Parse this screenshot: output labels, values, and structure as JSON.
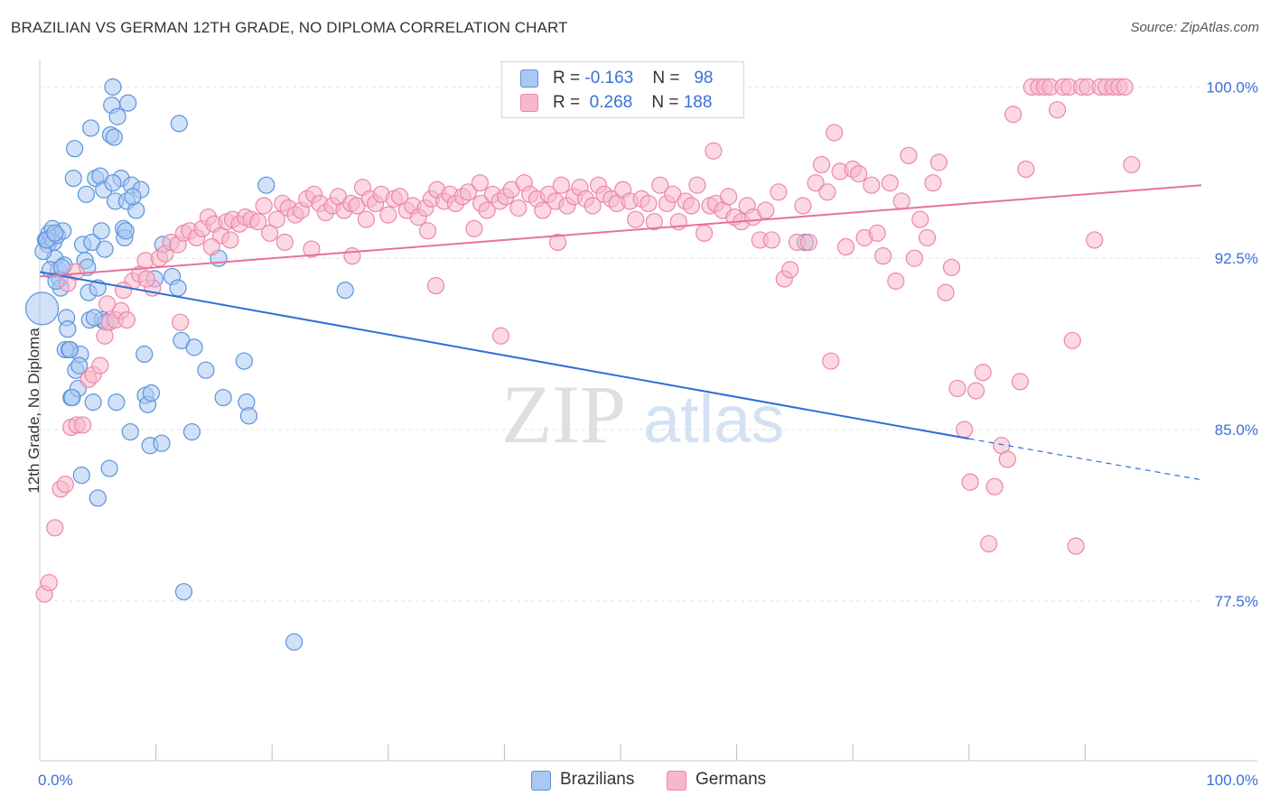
{
  "header": {
    "title": "BRAZILIAN VS GERMAN 12TH GRADE, NO DIPLOMA CORRELATION CHART",
    "source": "Source: ZipAtlas.com"
  },
  "watermark": {
    "part1": "ZIP",
    "part2": "atlas"
  },
  "colors": {
    "blue_fill": "#a9c8f2",
    "blue_stroke": "#5b93dc",
    "blue_line": "#2f6fd6",
    "pink_fill": "#f7b8cb",
    "pink_stroke": "#ec87a7",
    "pink_line": "#e8709b",
    "tick_text": "#3a6fd8",
    "grid": "#e3e3e3"
  },
  "legend_top": {
    "rows": [
      {
        "r_label": "R = ",
        "r_value": "-0.163",
        "n_label": "N = ",
        "n_value": "98"
      },
      {
        "r_label": "R = ",
        "r_value": "0.268",
        "n_label": "N = ",
        "n_value": "188"
      }
    ]
  },
  "legend_bottom": {
    "items": [
      "Brazilians",
      "Germans"
    ]
  },
  "chart_data": {
    "type": "scatter",
    "title": "BRAZILIAN VS GERMAN 12TH GRADE, NO DIPLOMA CORRELATION CHART",
    "xlabel": "",
    "ylabel": "12th Grade, No Diploma",
    "xlim": [
      0,
      100
    ],
    "ylim": [
      70.5,
      101.2
    ],
    "x_tick_labels": [
      "0.0%",
      "100.0%"
    ],
    "y_ticks": [
      77.5,
      85.0,
      92.5,
      100.0
    ],
    "y_tick_labels": [
      "77.5%",
      "85.0%",
      "92.5%",
      "100.0%"
    ],
    "grid": true,
    "legend_position": "top-center",
    "series": [
      {
        "name": "Brazilians",
        "r": -0.163,
        "n": 98,
        "trend": {
          "x0": 0,
          "y0": 91.9,
          "x1": 80,
          "y1": 84.6,
          "dashed_to_x": 100,
          "dashed_to_y": 82.8
        },
        "points": [
          [
            0.2,
            90.3,
            "L"
          ],
          [
            0.5,
            93.3
          ],
          [
            0.7,
            93.1
          ],
          [
            0.8,
            93.6
          ],
          [
            1.0,
            93.4
          ],
          [
            1.1,
            93.8
          ],
          [
            1.2,
            93.2
          ],
          [
            1.3,
            92.5
          ],
          [
            1.5,
            93.5
          ],
          [
            1.6,
            92.0
          ],
          [
            1.7,
            91.6
          ],
          [
            1.8,
            91.2
          ],
          [
            2.0,
            93.7
          ],
          [
            2.1,
            92.2
          ],
          [
            2.3,
            89.9
          ],
          [
            2.4,
            89.4
          ],
          [
            2.5,
            88.5
          ],
          [
            2.7,
            86.4
          ],
          [
            3.0,
            97.3
          ],
          [
            2.9,
            96.0
          ],
          [
            3.3,
            86.8
          ],
          [
            3.5,
            88.3
          ],
          [
            3.7,
            93.1
          ],
          [
            3.9,
            92.4
          ],
          [
            4.0,
            95.3
          ],
          [
            4.1,
            92.1
          ],
          [
            4.2,
            91.0
          ],
          [
            4.3,
            89.8
          ],
          [
            4.4,
            98.2
          ],
          [
            4.5,
            93.2
          ],
          [
            4.6,
            86.2
          ],
          [
            4.8,
            96.0
          ],
          [
            5.0,
            91.2
          ],
          [
            5.2,
            96.1
          ],
          [
            5.3,
            93.7
          ],
          [
            5.4,
            89.8
          ],
          [
            5.5,
            95.5
          ],
          [
            5.6,
            92.9
          ],
          [
            5.7,
            89.7
          ],
          [
            6.0,
            83.3
          ],
          [
            6.1,
            97.9
          ],
          [
            6.2,
            99.2
          ],
          [
            6.3,
            100.0
          ],
          [
            6.4,
            97.8
          ],
          [
            6.5,
            95.0
          ],
          [
            6.6,
            86.2
          ],
          [
            6.7,
            98.7
          ],
          [
            7.0,
            96.0
          ],
          [
            7.2,
            93.8
          ],
          [
            7.3,
            93.4
          ],
          [
            7.5,
            95.0
          ],
          [
            7.6,
            99.3
          ],
          [
            7.8,
            84.9
          ],
          [
            7.9,
            95.7
          ],
          [
            8.3,
            94.6
          ],
          [
            8.7,
            95.5
          ],
          [
            9.0,
            88.3
          ],
          [
            9.1,
            86.5
          ],
          [
            9.3,
            86.1
          ],
          [
            9.5,
            84.3
          ],
          [
            9.9,
            91.6
          ],
          [
            10.5,
            84.4
          ],
          [
            10.6,
            93.1
          ],
          [
            11.4,
            91.7
          ],
          [
            11.9,
            91.2
          ],
          [
            12.0,
            98.4
          ],
          [
            12.2,
            88.9
          ],
          [
            12.4,
            77.9
          ],
          [
            13.1,
            84.9
          ],
          [
            13.3,
            88.6
          ],
          [
            14.3,
            87.6
          ],
          [
            15.4,
            92.5
          ],
          [
            15.8,
            86.4
          ],
          [
            17.6,
            88.0
          ],
          [
            17.8,
            86.2
          ],
          [
            18.0,
            85.6
          ],
          [
            19.5,
            95.7
          ],
          [
            21.9,
            75.7
          ],
          [
            26.3,
            91.1
          ],
          [
            65.9,
            93.2
          ],
          [
            0.3,
            92.8
          ],
          [
            0.9,
            92.0
          ],
          [
            1.4,
            91.5
          ],
          [
            2.2,
            88.5
          ],
          [
            3.1,
            87.6
          ],
          [
            3.6,
            83.0
          ],
          [
            5.0,
            82.0
          ],
          [
            6.3,
            95.8
          ],
          [
            7.4,
            93.7
          ],
          [
            8.0,
            95.2
          ],
          [
            1.9,
            92.1
          ],
          [
            2.6,
            88.5
          ],
          [
            3.4,
            87.8
          ],
          [
            4.7,
            89.9
          ],
          [
            0.6,
            93.3
          ],
          [
            1.3,
            93.6
          ],
          [
            2.8,
            86.4
          ],
          [
            9.6,
            86.6
          ]
        ]
      },
      {
        "name": "Germans",
        "r": 0.268,
        "n": 188,
        "trend": {
          "x0": 0,
          "y0": 91.7,
          "x1": 100,
          "y1": 95.7
        },
        "points": [
          [
            0.4,
            77.8
          ],
          [
            0.8,
            78.3
          ],
          [
            1.3,
            80.7
          ],
          [
            1.8,
            82.4
          ],
          [
            2.2,
            82.6
          ],
          [
            2.7,
            85.1
          ],
          [
            3.2,
            85.2
          ],
          [
            3.7,
            85.2
          ],
          [
            4.2,
            87.2
          ],
          [
            4.6,
            87.4
          ],
          [
            5.2,
            87.8
          ],
          [
            5.6,
            89.1
          ],
          [
            6.0,
            89.7
          ],
          [
            6.5,
            89.8
          ],
          [
            7.0,
            90.2
          ],
          [
            7.5,
            89.8
          ],
          [
            8.0,
            91.5
          ],
          [
            8.6,
            91.8
          ],
          [
            9.1,
            92.4
          ],
          [
            9.7,
            91.2
          ],
          [
            10.3,
            92.5
          ],
          [
            10.8,
            92.7
          ],
          [
            11.3,
            93.2
          ],
          [
            11.9,
            93.1
          ],
          [
            12.4,
            93.6
          ],
          [
            12.9,
            93.7
          ],
          [
            13.5,
            93.4
          ],
          [
            14.0,
            93.8
          ],
          [
            14.5,
            94.3
          ],
          [
            15.0,
            94.0
          ],
          [
            15.6,
            93.5
          ],
          [
            16.1,
            94.1
          ],
          [
            16.6,
            94.2
          ],
          [
            17.2,
            94.0
          ],
          [
            17.7,
            94.3
          ],
          [
            18.2,
            94.2
          ],
          [
            18.8,
            94.1
          ],
          [
            19.3,
            94.8
          ],
          [
            19.8,
            93.6
          ],
          [
            20.4,
            94.2
          ],
          [
            20.9,
            94.9
          ],
          [
            21.4,
            94.7
          ],
          [
            22.0,
            94.4
          ],
          [
            22.5,
            94.6
          ],
          [
            23.0,
            95.1
          ],
          [
            23.6,
            95.3
          ],
          [
            24.1,
            94.9
          ],
          [
            24.6,
            94.5
          ],
          [
            25.2,
            94.8
          ],
          [
            25.7,
            95.2
          ],
          [
            26.2,
            94.6
          ],
          [
            26.8,
            94.9
          ],
          [
            27.3,
            94.8
          ],
          [
            27.8,
            95.6
          ],
          [
            28.4,
            95.1
          ],
          [
            28.9,
            94.9
          ],
          [
            29.4,
            95.3
          ],
          [
            30.0,
            94.4
          ],
          [
            30.5,
            95.1
          ],
          [
            31.0,
            95.2
          ],
          [
            31.6,
            94.6
          ],
          [
            32.1,
            94.8
          ],
          [
            32.6,
            94.3
          ],
          [
            33.2,
            94.7
          ],
          [
            33.7,
            95.1
          ],
          [
            34.2,
            95.5
          ],
          [
            34.8,
            95.0
          ],
          [
            35.3,
            95.3
          ],
          [
            35.8,
            94.9
          ],
          [
            36.4,
            95.2
          ],
          [
            36.9,
            95.4
          ],
          [
            37.4,
            93.8
          ],
          [
            38.0,
            94.9
          ],
          [
            38.5,
            94.6
          ],
          [
            39.0,
            95.3
          ],
          [
            39.6,
            95.0
          ],
          [
            40.1,
            95.2
          ],
          [
            40.6,
            95.5
          ],
          [
            41.2,
            94.7
          ],
          [
            41.7,
            95.8
          ],
          [
            42.2,
            95.3
          ],
          [
            42.8,
            95.1
          ],
          [
            43.3,
            94.6
          ],
          [
            43.8,
            95.3
          ],
          [
            44.4,
            95.0
          ],
          [
            44.9,
            95.7
          ],
          [
            45.4,
            94.8
          ],
          [
            46.0,
            95.2
          ],
          [
            46.5,
            95.6
          ],
          [
            47.0,
            95.1
          ],
          [
            47.6,
            94.8
          ],
          [
            48.1,
            95.7
          ],
          [
            48.6,
            95.3
          ],
          [
            49.2,
            95.1
          ],
          [
            49.7,
            94.9
          ],
          [
            50.2,
            95.5
          ],
          [
            50.8,
            95.0
          ],
          [
            51.3,
            94.2
          ],
          [
            51.8,
            95.1
          ],
          [
            52.4,
            94.9
          ],
          [
            52.9,
            94.1
          ],
          [
            53.4,
            95.7
          ],
          [
            54.0,
            94.9
          ],
          [
            54.5,
            95.3
          ],
          [
            55.0,
            94.1
          ],
          [
            55.6,
            95.0
          ],
          [
            56.1,
            94.8
          ],
          [
            56.6,
            95.7
          ],
          [
            57.2,
            93.6
          ],
          [
            57.7,
            94.8
          ],
          [
            58.2,
            94.9
          ],
          [
            58.8,
            94.6
          ],
          [
            59.3,
            95.2
          ],
          [
            59.8,
            94.3
          ],
          [
            60.4,
            94.1
          ],
          [
            60.9,
            94.8
          ],
          [
            61.4,
            94.3
          ],
          [
            62.0,
            93.3
          ],
          [
            62.5,
            94.6
          ],
          [
            63.0,
            93.3
          ],
          [
            63.6,
            95.4
          ],
          [
            64.1,
            91.6
          ],
          [
            64.6,
            92.0
          ],
          [
            65.2,
            93.2
          ],
          [
            65.7,
            94.8
          ],
          [
            66.2,
            93.2
          ],
          [
            66.8,
            95.8
          ],
          [
            67.3,
            96.6
          ],
          [
            67.8,
            95.4
          ],
          [
            68.4,
            98.0
          ],
          [
            68.9,
            96.3
          ],
          [
            69.4,
            93.0
          ],
          [
            70.0,
            96.4
          ],
          [
            70.5,
            96.2
          ],
          [
            71.0,
            93.4
          ],
          [
            71.6,
            95.7
          ],
          [
            72.1,
            93.6
          ],
          [
            72.6,
            92.6
          ],
          [
            73.2,
            95.8
          ],
          [
            73.7,
            91.5
          ],
          [
            74.2,
            95.0
          ],
          [
            74.8,
            97.0
          ],
          [
            75.3,
            92.5
          ],
          [
            75.8,
            94.2
          ],
          [
            76.4,
            93.4
          ],
          [
            76.9,
            95.8
          ],
          [
            77.4,
            96.7
          ],
          [
            78.0,
            91.0
          ],
          [
            78.5,
            92.1
          ],
          [
            79.0,
            86.8
          ],
          [
            79.6,
            85.0
          ],
          [
            80.1,
            82.7
          ],
          [
            80.6,
            86.7
          ],
          [
            81.2,
            87.5
          ],
          [
            81.7,
            80.0
          ],
          [
            82.2,
            82.5
          ],
          [
            82.8,
            84.3
          ],
          [
            83.3,
            83.7
          ],
          [
            83.8,
            98.8
          ],
          [
            84.4,
            87.1
          ],
          [
            84.9,
            96.4
          ],
          [
            85.4,
            100.0
          ],
          [
            86.0,
            100.0
          ],
          [
            86.5,
            100.0
          ],
          [
            87.0,
            100.0
          ],
          [
            87.6,
            99.0
          ],
          [
            88.1,
            100.0
          ],
          [
            88.6,
            100.0
          ],
          [
            89.2,
            79.9
          ],
          [
            89.7,
            100.0
          ],
          [
            90.2,
            100.0
          ],
          [
            90.8,
            93.3
          ],
          [
            91.3,
            100.0
          ],
          [
            91.8,
            100.0
          ],
          [
            92.4,
            100.0
          ],
          [
            92.9,
            100.0
          ],
          [
            93.4,
            100.0
          ],
          [
            94.0,
            96.6
          ],
          [
            88.9,
            88.9
          ],
          [
            68.1,
            88.0
          ],
          [
            44.6,
            93.2
          ],
          [
            39.7,
            89.1
          ],
          [
            34.1,
            91.3
          ],
          [
            26.9,
            92.6
          ],
          [
            23.4,
            92.9
          ],
          [
            21.1,
            93.2
          ],
          [
            14.8,
            93.0
          ],
          [
            12.1,
            89.7
          ],
          [
            9.2,
            91.6
          ],
          [
            5.8,
            90.5
          ],
          [
            3.1,
            91.9
          ],
          [
            2.4,
            91.4
          ],
          [
            7.2,
            91.1
          ],
          [
            16.4,
            93.3
          ],
          [
            28.1,
            94.2
          ],
          [
            33.4,
            93.7
          ],
          [
            37.9,
            95.8
          ],
          [
            58.0,
            97.2
          ]
        ]
      }
    ]
  }
}
